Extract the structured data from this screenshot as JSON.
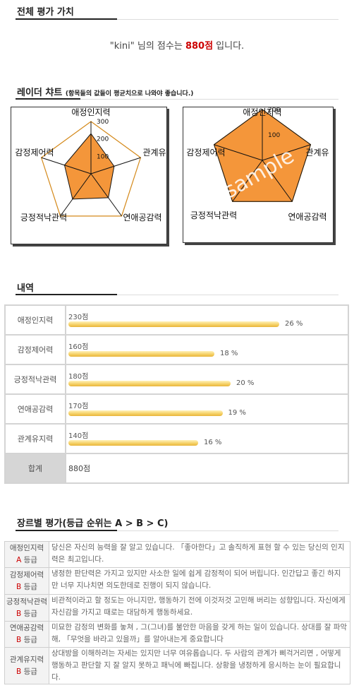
{
  "sections": {
    "overall": "전체 평가 가치",
    "radar": "레이더 챠트",
    "radar_note": "(항목들의 값들이 평균치으로 나와야 좋습니다.)",
    "detail": "내역",
    "genre": "장르별 평가(등급 순위는 A > B > C)"
  },
  "score": {
    "name": "\"kini\"",
    "mid": " 님의 점수는 ",
    "value": "880점",
    "suffix": " 입니다."
  },
  "radar": {
    "axes": [
      "애정인지력",
      "관계유",
      "연애공감력",
      "긍정적낙관력",
      "감정제어력"
    ],
    "ticks_left": [
      "300",
      "200",
      "100"
    ],
    "ticks_right": [
      "200",
      "100"
    ],
    "user_values": [
      230,
      140,
      170,
      180,
      160
    ],
    "sample_values": [
      200,
      200,
      200,
      200,
      200
    ],
    "watermark": "sample",
    "colors": {
      "fill": "#f4963a",
      "frame": "#d4891a",
      "stroke": "#111"
    }
  },
  "detail": {
    "rows": [
      {
        "label": "애정인지력",
        "points": "230점",
        "pct": 26,
        "pct_text": "26 %"
      },
      {
        "label": "감정제어력",
        "points": "160점",
        "pct": 18,
        "pct_text": "18 %"
      },
      {
        "label": "긍정적낙관력",
        "points": "180점",
        "pct": 20,
        "pct_text": "20 %"
      },
      {
        "label": "연애공감력",
        "points": "170점",
        "pct": 19,
        "pct_text": "19 %"
      },
      {
        "label": "관계유지력",
        "points": "140점",
        "pct": 16,
        "pct_text": "16 %"
      }
    ],
    "total_label": "합계",
    "total_value": "880점"
  },
  "genre": {
    "rows": [
      {
        "name": "애정인지력",
        "grade": "A",
        "grade_suffix": " 등급",
        "text": "당신은 자신의 능력을 잘 알고 있습니다. 「좋아한다」고 솔직하게 표현 할 수 있는 당신의 인지력은 최고입니다."
      },
      {
        "name": "감정제어력",
        "grade": "B",
        "grade_suffix": " 등급",
        "text": "냉정한 판단력은 가지고 있지만 사소한 일에 쉽게 감정적이 되어 버립니다. 인간답고 좋긴 하지만 너무 지나치면 의도한데로 진행이 되지 않습니다."
      },
      {
        "name": "긍정적낙관력",
        "grade": "B",
        "grade_suffix": " 등급",
        "text": "비관적이라고 할 정도는 아니지만, 행동하기 전에 이것저것 고민해 버리는 성향입니다. 자신에게 자신감을 가지고 때로는 대담하게 행동하세요."
      },
      {
        "name": "연애공감력",
        "grade": "B",
        "grade_suffix": " 등급",
        "text": "미묘한 감정의 변화를 놓쳐 , 그(그녀)를 불안한 마음을 갖게 하는 일이 있습니다. 상대를 잘 파악해, 「무엇을 바라고 있을까」를 알아내는게 중요합니다"
      },
      {
        "name": "관계유지력",
        "grade": "B",
        "grade_suffix": " 등급",
        "text": "상대방을 이해하려는 자세는 있지만 너무 여유롭습니다. 두 사람의 관계가 삐걱거리면 , 어떻게 행동하고 판단할 지 잘 알지 못하고 패닉에 빠집니다. 상황을 냉정하게 응시하는 눈이 필요합니다."
      }
    ]
  }
}
